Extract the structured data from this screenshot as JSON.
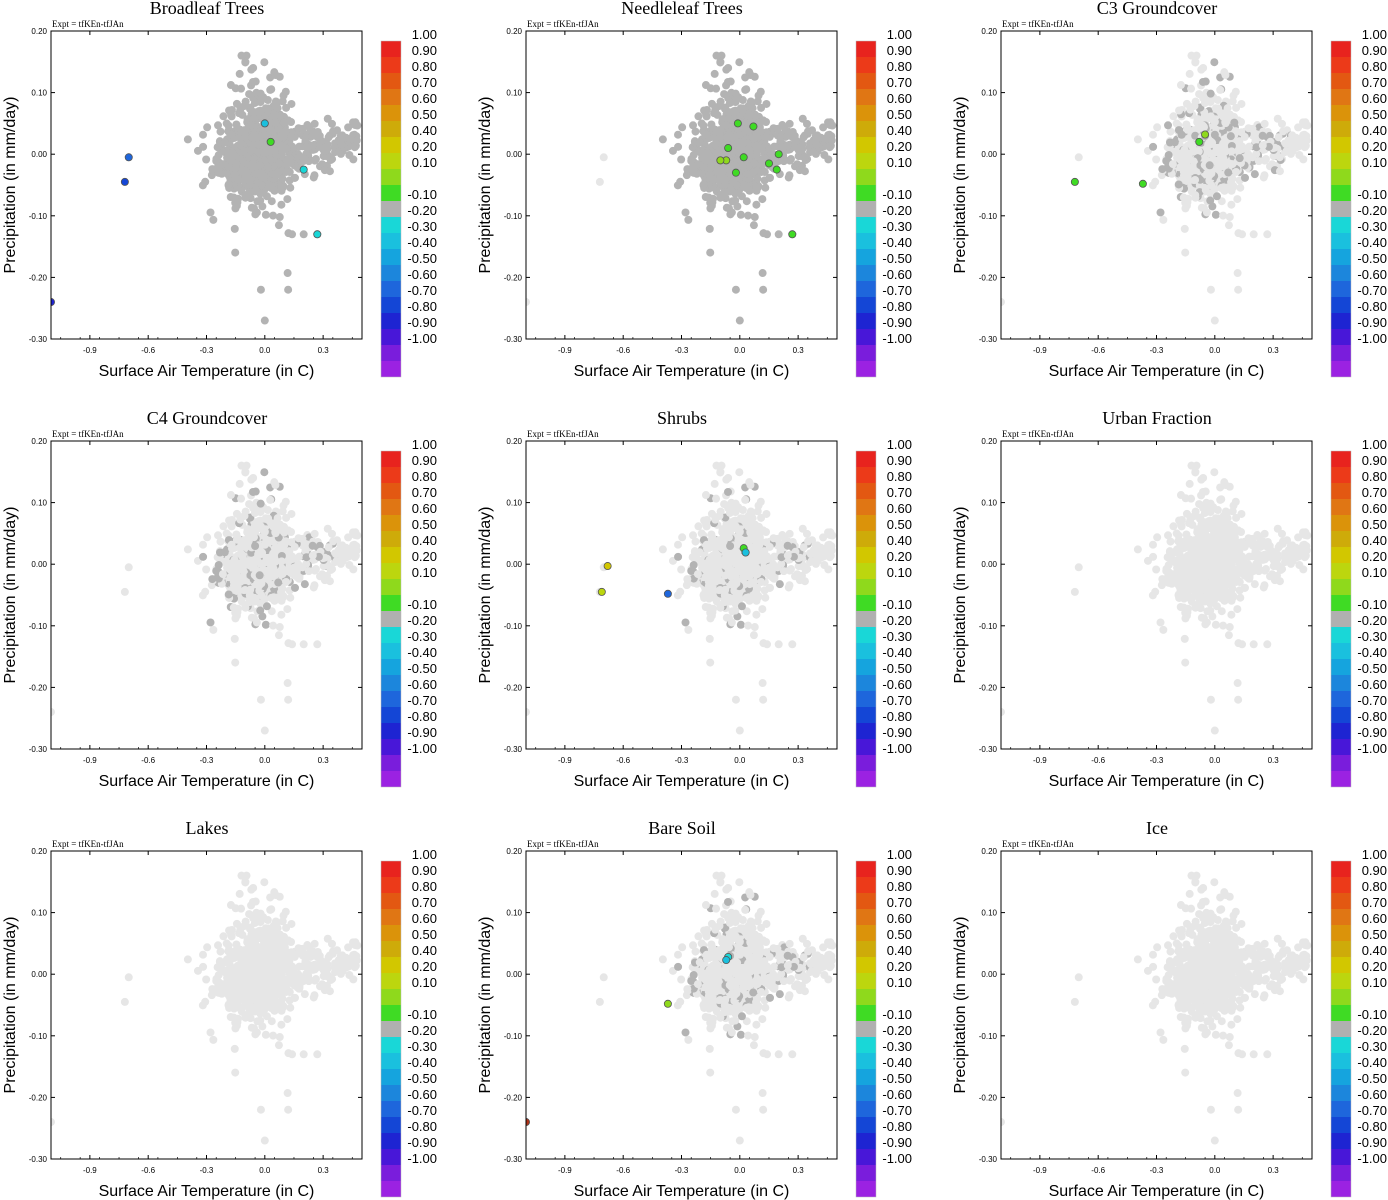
{
  "figure": {
    "experiment_label": "Expt = tfKEn-tfJAn",
    "colors": {
      "gray_point": "#e6e6e6",
      "dark_gray_point": "#b3b3b3",
      "frame": "#000000"
    }
  },
  "shared": {
    "xlabel": "Surface Air Temperature (in C)",
    "ylabel": "Precipitation (in mm/day)",
    "xticks": [
      "-0.9",
      "-0.6",
      "-0.3",
      "0.0",
      "0.3"
    ],
    "yticks": [
      "0.20",
      "0.10",
      "0.00",
      "-0.10",
      "-0.20",
      "-0.30"
    ],
    "colorbar": {
      "labels": [
        "1.00",
        "0.90",
        "0.80",
        "0.70",
        "0.60",
        "0.50",
        "0.40",
        "0.20",
        "0.10",
        "-0.10",
        "-0.20",
        "-0.30",
        "-0.40",
        "-0.50",
        "-0.60",
        "-0.70",
        "-0.80",
        "-0.90",
        "-1.00"
      ],
      "colors": [
        "#e8231e",
        "#ec3a19",
        "#e35812",
        "#e07614",
        "#db930a",
        "#ceab09",
        "#d2c700",
        "#bcd60e",
        "#8fd91c",
        "#3fdb24",
        "#b0b0b0",
        "#19d7d7",
        "#1ac0de",
        "#15a4de",
        "#1c86dc",
        "#1e66dc",
        "#1446d6",
        "#1e24d2",
        "#4817d8",
        "#7a1ddc",
        "#9b22e2"
      ]
    }
  },
  "chart_data": [
    {
      "type": "scatter",
      "title": "Broadleaf Trees",
      "xlim": [
        -1.1,
        0.5
      ],
      "ylim": [
        -0.3,
        0.2
      ],
      "highlights": [
        {
          "x": -0.7,
          "y": -0.005,
          "color": "#1e66dc"
        },
        {
          "x": -0.72,
          "y": -0.045,
          "color": "#1446d6"
        },
        {
          "x": -1.1,
          "y": -0.24,
          "color": "#1e24d2"
        },
        {
          "x": 0.03,
          "y": 0.02,
          "color": "#3fdb24"
        },
        {
          "x": 0.27,
          "y": -0.13,
          "color": "#19d7d7"
        },
        {
          "x": 0.2,
          "y": -0.025,
          "color": "#19d7d7"
        },
        {
          "x": 0.0,
          "y": 0.05,
          "color": "#1ac0de"
        }
      ],
      "dark_density": 1.0
    },
    {
      "type": "scatter",
      "title": "Needleleaf Trees",
      "xlim": [
        -1.1,
        0.5
      ],
      "ylim": [
        -0.3,
        0.2
      ],
      "highlights": [
        {
          "x": -0.01,
          "y": 0.05,
          "color": "#3fdb24"
        },
        {
          "x": 0.07,
          "y": 0.045,
          "color": "#3fdb24"
        },
        {
          "x": -0.06,
          "y": 0.01,
          "color": "#3fdb24"
        },
        {
          "x": -0.07,
          "y": -0.01,
          "color": "#8fd91c"
        },
        {
          "x": -0.1,
          "y": -0.01,
          "color": "#8fd91c"
        },
        {
          "x": 0.02,
          "y": -0.005,
          "color": "#3fdb24"
        },
        {
          "x": -0.02,
          "y": -0.03,
          "color": "#3fdb24"
        },
        {
          "x": 0.15,
          "y": -0.015,
          "color": "#3fdb24"
        },
        {
          "x": 0.2,
          "y": 0.0,
          "color": "#3fdb24"
        },
        {
          "x": 0.19,
          "y": -0.025,
          "color": "#3fdb24"
        },
        {
          "x": 0.27,
          "y": -0.13,
          "color": "#3fdb24"
        }
      ],
      "dark_density": 1.0
    },
    {
      "type": "scatter",
      "title": "C3 Groundcover",
      "xlim": [
        -1.1,
        0.5
      ],
      "ylim": [
        -0.3,
        0.2
      ],
      "highlights": [
        {
          "x": -0.72,
          "y": -0.045,
          "color": "#3fdb24"
        },
        {
          "x": -0.37,
          "y": -0.048,
          "color": "#3fdb24"
        },
        {
          "x": -0.08,
          "y": 0.02,
          "color": "#3fdb24"
        },
        {
          "x": -0.05,
          "y": 0.032,
          "color": "#8fd91c"
        }
      ],
      "dark_density": 0.25
    },
    {
      "type": "scatter",
      "title": "C4 Groundcover",
      "xlim": [
        -1.1,
        0.5
      ],
      "ylim": [
        -0.3,
        0.2
      ],
      "highlights": [],
      "dark_density": 0.2
    },
    {
      "type": "scatter",
      "title": "Shrubs",
      "xlim": [
        -1.1,
        0.5
      ],
      "ylim": [
        -0.3,
        0.2
      ],
      "highlights": [
        {
          "x": -0.68,
          "y": -0.003,
          "color": "#d2c700"
        },
        {
          "x": -0.71,
          "y": -0.045,
          "color": "#bcd60e"
        },
        {
          "x": -0.37,
          "y": -0.048,
          "color": "#1e66dc"
        },
        {
          "x": 0.02,
          "y": 0.026,
          "color": "#3fdb24"
        },
        {
          "x": 0.03,
          "y": 0.019,
          "color": "#1ac0de"
        }
      ],
      "dark_density": 0.12
    },
    {
      "type": "scatter",
      "title": "Urban Fraction",
      "xlim": [
        -1.1,
        0.5
      ],
      "ylim": [
        -0.3,
        0.2
      ],
      "highlights": [],
      "dark_density": 0.0
    },
    {
      "type": "scatter",
      "title": "Lakes",
      "xlim": [
        -1.1,
        0.5
      ],
      "ylim": [
        -0.3,
        0.2
      ],
      "highlights": [],
      "dark_density": 0.0
    },
    {
      "type": "scatter",
      "title": "Bare Soil",
      "xlim": [
        -1.1,
        0.5
      ],
      "ylim": [
        -0.3,
        0.2
      ],
      "highlights": [
        {
          "x": -0.37,
          "y": -0.048,
          "color": "#8fd91c"
        },
        {
          "x": -0.06,
          "y": 0.028,
          "color": "#19d7d7"
        },
        {
          "x": -0.07,
          "y": 0.023,
          "color": "#1ac0de"
        },
        {
          "x": -1.1,
          "y": -0.24,
          "color": "#b03218"
        }
      ],
      "dark_density": 0.15
    },
    {
      "type": "scatter",
      "title": "Ice",
      "xlim": [
        -1.1,
        0.5
      ],
      "ylim": [
        -0.3,
        0.2
      ],
      "highlights": [],
      "dark_density": 0.0
    }
  ]
}
